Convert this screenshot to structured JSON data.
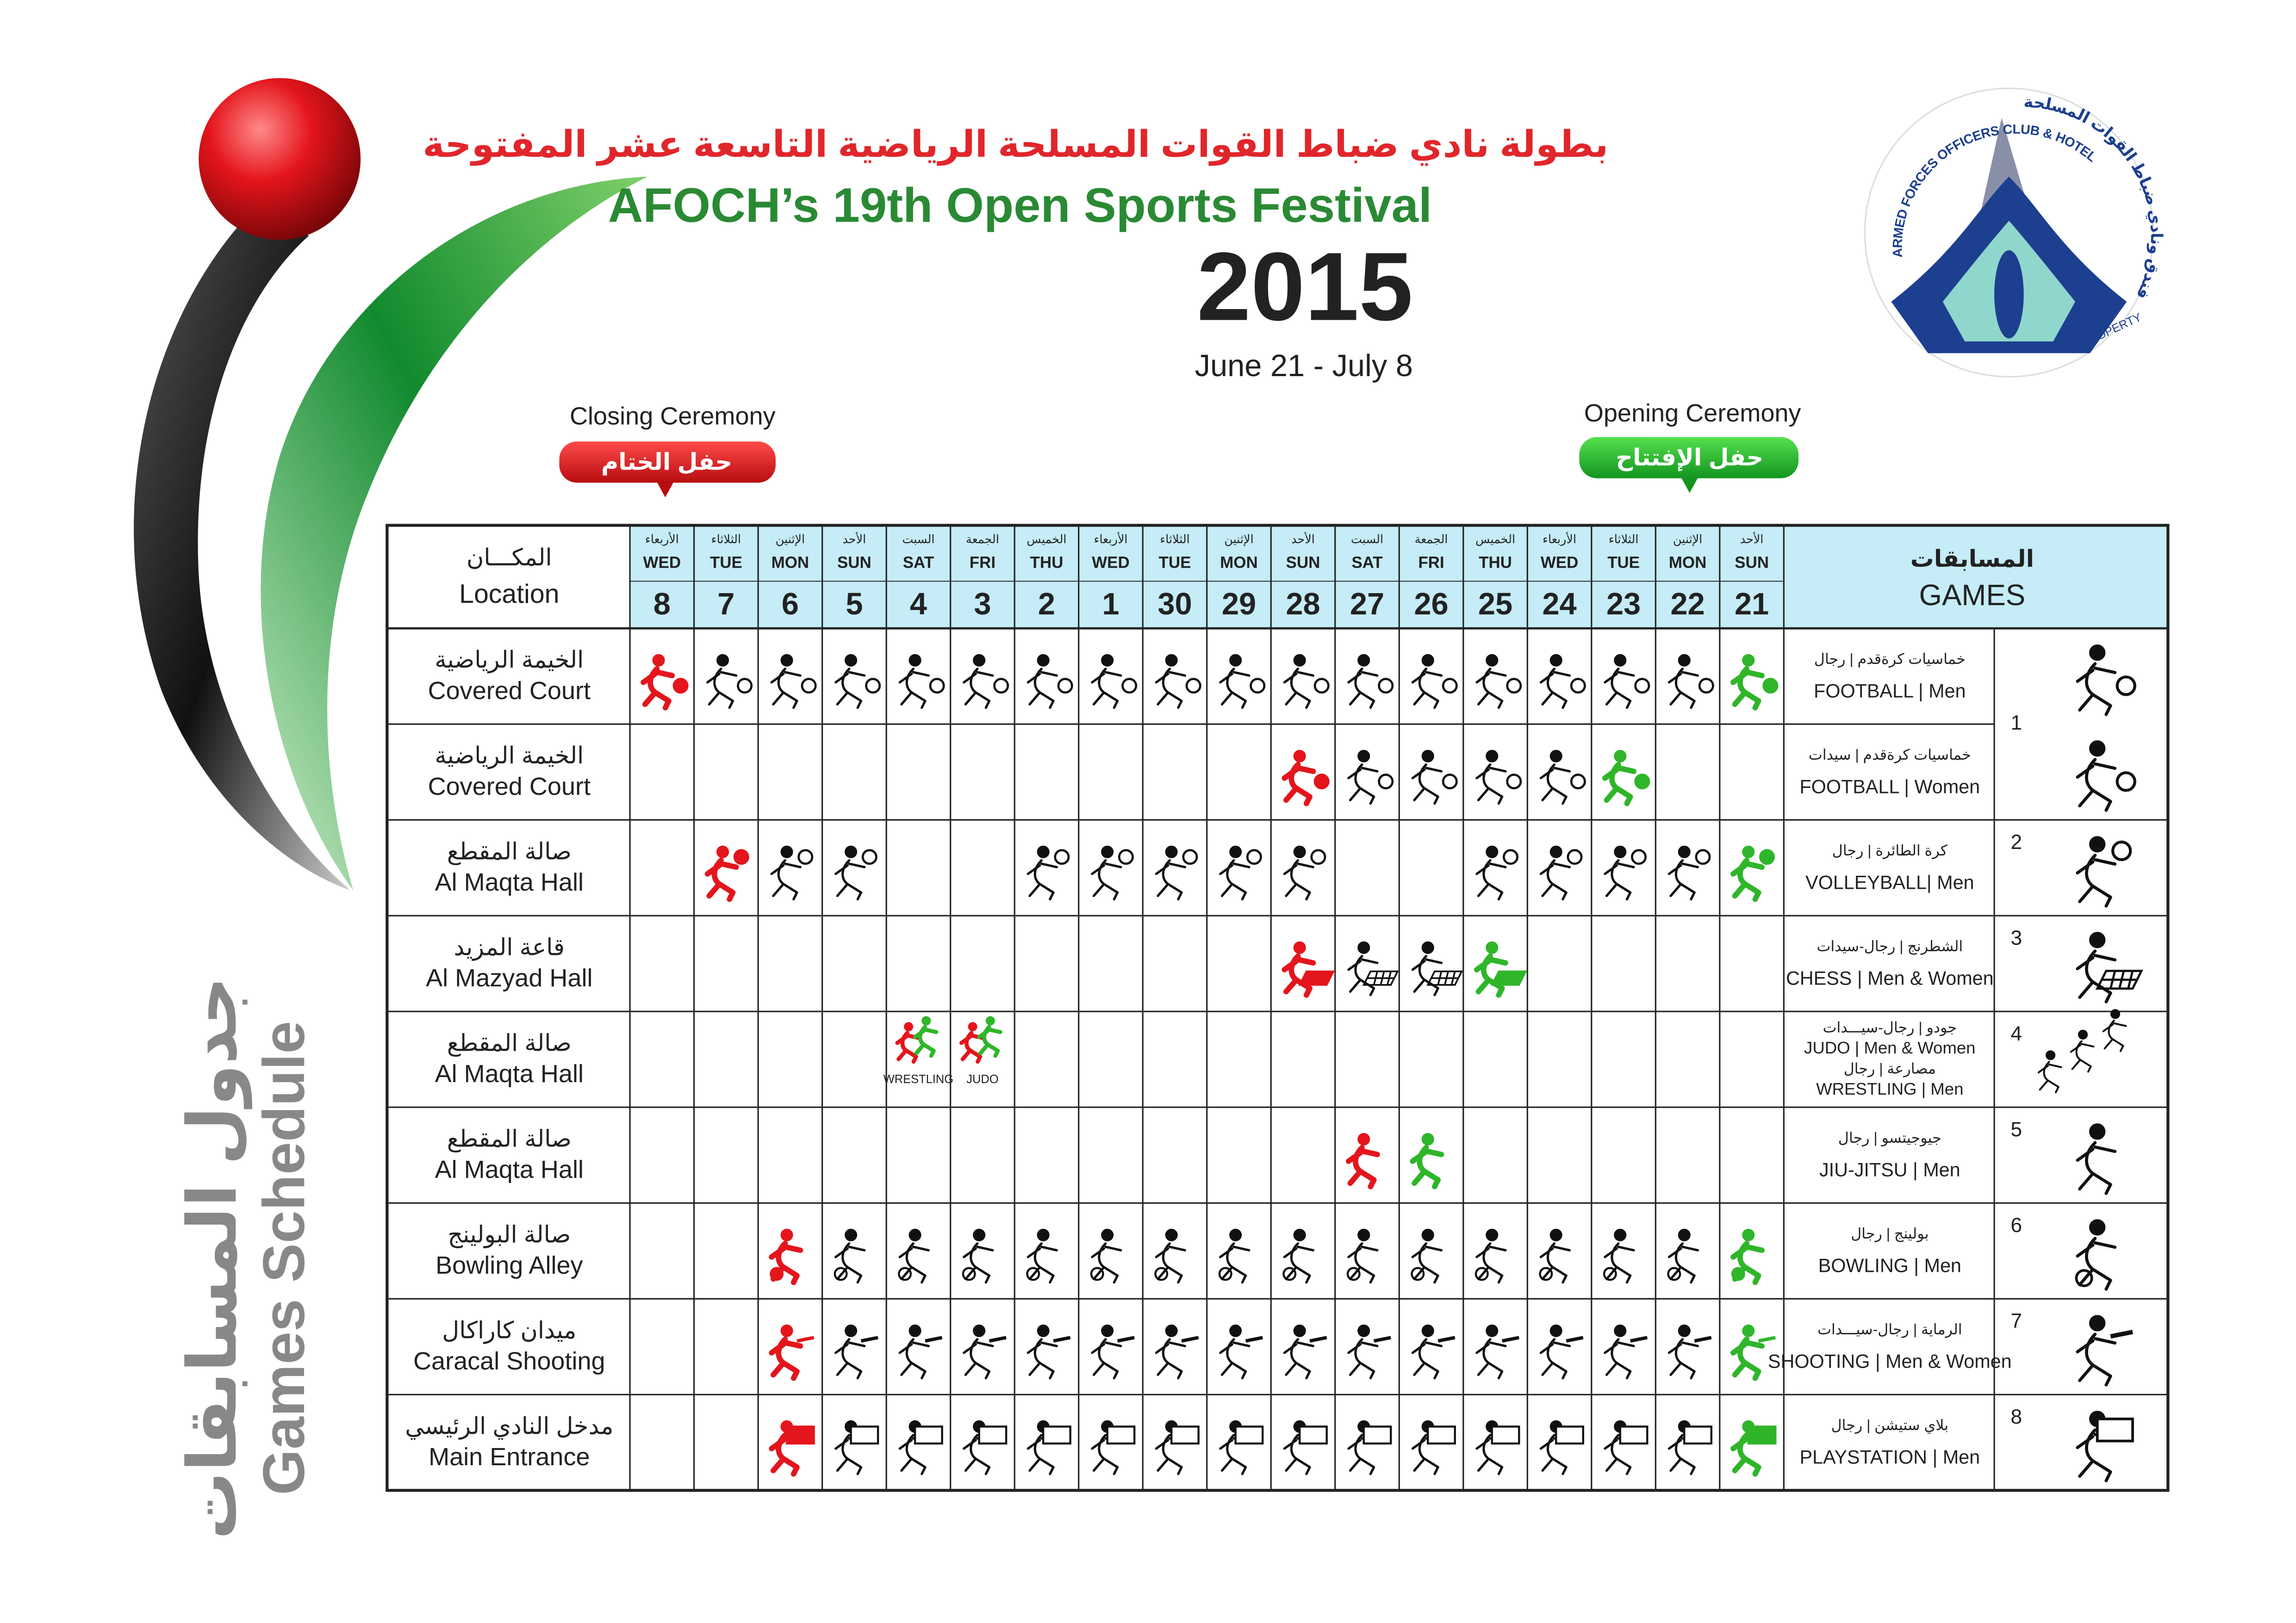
{
  "header": {
    "arabic_title": "بطولة نادي ضباط القوات المسلحة الرياضية التاسعة عشر المفتوحة",
    "title": "AFOCH’s 19th Open Sports Festival",
    "year": "2015",
    "dates": "June 21 - July 8"
  },
  "logo": {
    "english": "ARMED FORCES OFFICERS CLUB & HOTEL",
    "arabic": "فندق ونادي ضباط القوات المسلحة",
    "property": "PROPERTY"
  },
  "closing": {
    "label": "Closing Ceremony",
    "arabic": "حفل الختام"
  },
  "opening": {
    "label": "Opening Ceremony",
    "arabic": "حفل الإفتتاح"
  },
  "side_title": {
    "arabic": "جدول المسابقات",
    "english": "Games Schedule"
  },
  "table": {
    "location_header": {
      "arabic": "المكـــان",
      "english": "Location"
    },
    "games_header": {
      "arabic": "المسابقات",
      "english": "GAMES"
    },
    "days": [
      {
        "arabic": "الأربعاء",
        "day": "WED",
        "date": 8
      },
      {
        "arabic": "الثلاثاء",
        "day": "TUE",
        "date": 7
      },
      {
        "arabic": "الإثنين",
        "day": "MON",
        "date": 6
      },
      {
        "arabic": "الأحد",
        "day": "SUN",
        "date": 5
      },
      {
        "arabic": "السبت",
        "day": "SAT",
        "date": 4
      },
      {
        "arabic": "الجمعة",
        "day": "FRI",
        "date": 3
      },
      {
        "arabic": "الخميس",
        "day": "THU",
        "date": 2
      },
      {
        "arabic": "الأربعاء",
        "day": "WED",
        "date": 1
      },
      {
        "arabic": "الثلاثاء",
        "day": "TUE",
        "date": 30
      },
      {
        "arabic": "الإثنين",
        "day": "MON",
        "date": 29
      },
      {
        "arabic": "الأحد",
        "day": "SUN",
        "date": 28
      },
      {
        "arabic": "السبت",
        "day": "SAT",
        "date": 27
      },
      {
        "arabic": "الجمعة",
        "day": "FRI",
        "date": 26
      },
      {
        "arabic": "الخميس",
        "day": "THU",
        "date": 25
      },
      {
        "arabic": "الأربعاء",
        "day": "WED",
        "date": 24
      },
      {
        "arabic": "الثلاثاء",
        "day": "TUE",
        "date": 23
      },
      {
        "arabic": "الإثنين",
        "day": "MON",
        "date": 22
      },
      {
        "arabic": "الأحد",
        "day": "SUN",
        "date": 21
      }
    ],
    "rows": [
      {
        "location": {
          "arabic": "الخيمة الرياضية",
          "english": "Covered Court"
        },
        "game": [
          "خماسيات كرةقدم | رجال",
          "FOOTBALL | Men"
        ],
        "number": 1,
        "dates": [
          21,
          22,
          23,
          24,
          25,
          26,
          27,
          28,
          29,
          30,
          1,
          2,
          3,
          4,
          5,
          6,
          7,
          8
        ]
      },
      {
        "location": {
          "arabic": "الخيمة الرياضية",
          "english": "Covered Court"
        },
        "game": [
          "خماسيات كرةقدم | سيدات",
          "FOOTBALL | Women"
        ],
        "dates": [
          23,
          24,
          25,
          26,
          27,
          28
        ]
      },
      {
        "location": {
          "arabic": "صالة المقطع",
          "english": "Al Maqta Hall"
        },
        "game": [
          "كرة الطائرة | رجال",
          "VOLLEYBALL| Men"
        ],
        "number": 2,
        "dates": [
          21,
          22,
          23,
          24,
          25,
          28,
          29,
          30,
          1,
          2,
          5,
          6,
          7
        ]
      },
      {
        "location": {
          "arabic": "قاعة المزيد",
          "english": "Al Mazyad Hall"
        },
        "game": [
          "الشطرنج | رجال-سيدات",
          "CHESS | Men & Women"
        ],
        "number": 3,
        "dates": [
          25,
          26,
          27,
          28
        ]
      },
      {
        "location": {
          "arabic": "صالة المقطع",
          "english": "Al Maqta Hall"
        },
        "game": [
          "جودو | رجال-سيـــدات",
          "JUDO | Men & Women",
          "مصارعة | رجال",
          "WRESTLING | Men"
        ],
        "number": 4,
        "dates": [
          3,
          4
        ],
        "date_labels": [
          "JUDO",
          "WRESTLING"
        ]
      },
      {
        "location": {
          "arabic": "صالة المقطع",
          "english": "Al Maqta Hall"
        },
        "game": [
          "جيوجيتسو | رجال",
          "JIU-JITSU | Men"
        ],
        "number": 5,
        "dates": [
          26,
          27
        ]
      },
      {
        "location": {
          "arabic": "صالة البولينج",
          "english": "Bowling Alley"
        },
        "game": [
          "بولينج | رجال",
          "BOWLING | Men"
        ],
        "number": 6,
        "dates": [
          21,
          22,
          23,
          24,
          25,
          26,
          27,
          28,
          29,
          30,
          1,
          2,
          3,
          4,
          5,
          6
        ]
      },
      {
        "location": {
          "arabic": "ميدان كاراكال",
          "english": "Caracal Shooting"
        },
        "game": [
          "الرماية | رجال-سيـــدات",
          "SHOOTING | Men & Women"
        ],
        "number": 7,
        "dates": [
          21,
          22,
          23,
          24,
          25,
          26,
          27,
          28,
          29,
          30,
          1,
          2,
          3,
          4,
          5,
          6
        ]
      },
      {
        "location": {
          "arabic": "مدخل النادي الرئيسي",
          "english": "Main Entrance"
        },
        "game": [
          "بلاي ستيشن | رجال",
          "PLAYSTATION | Men"
        ],
        "number": 8,
        "dates": [
          21,
          22,
          23,
          24,
          25,
          26,
          27,
          28,
          29,
          30,
          1,
          2,
          3,
          4,
          5,
          6
        ]
      }
    ]
  }
}
